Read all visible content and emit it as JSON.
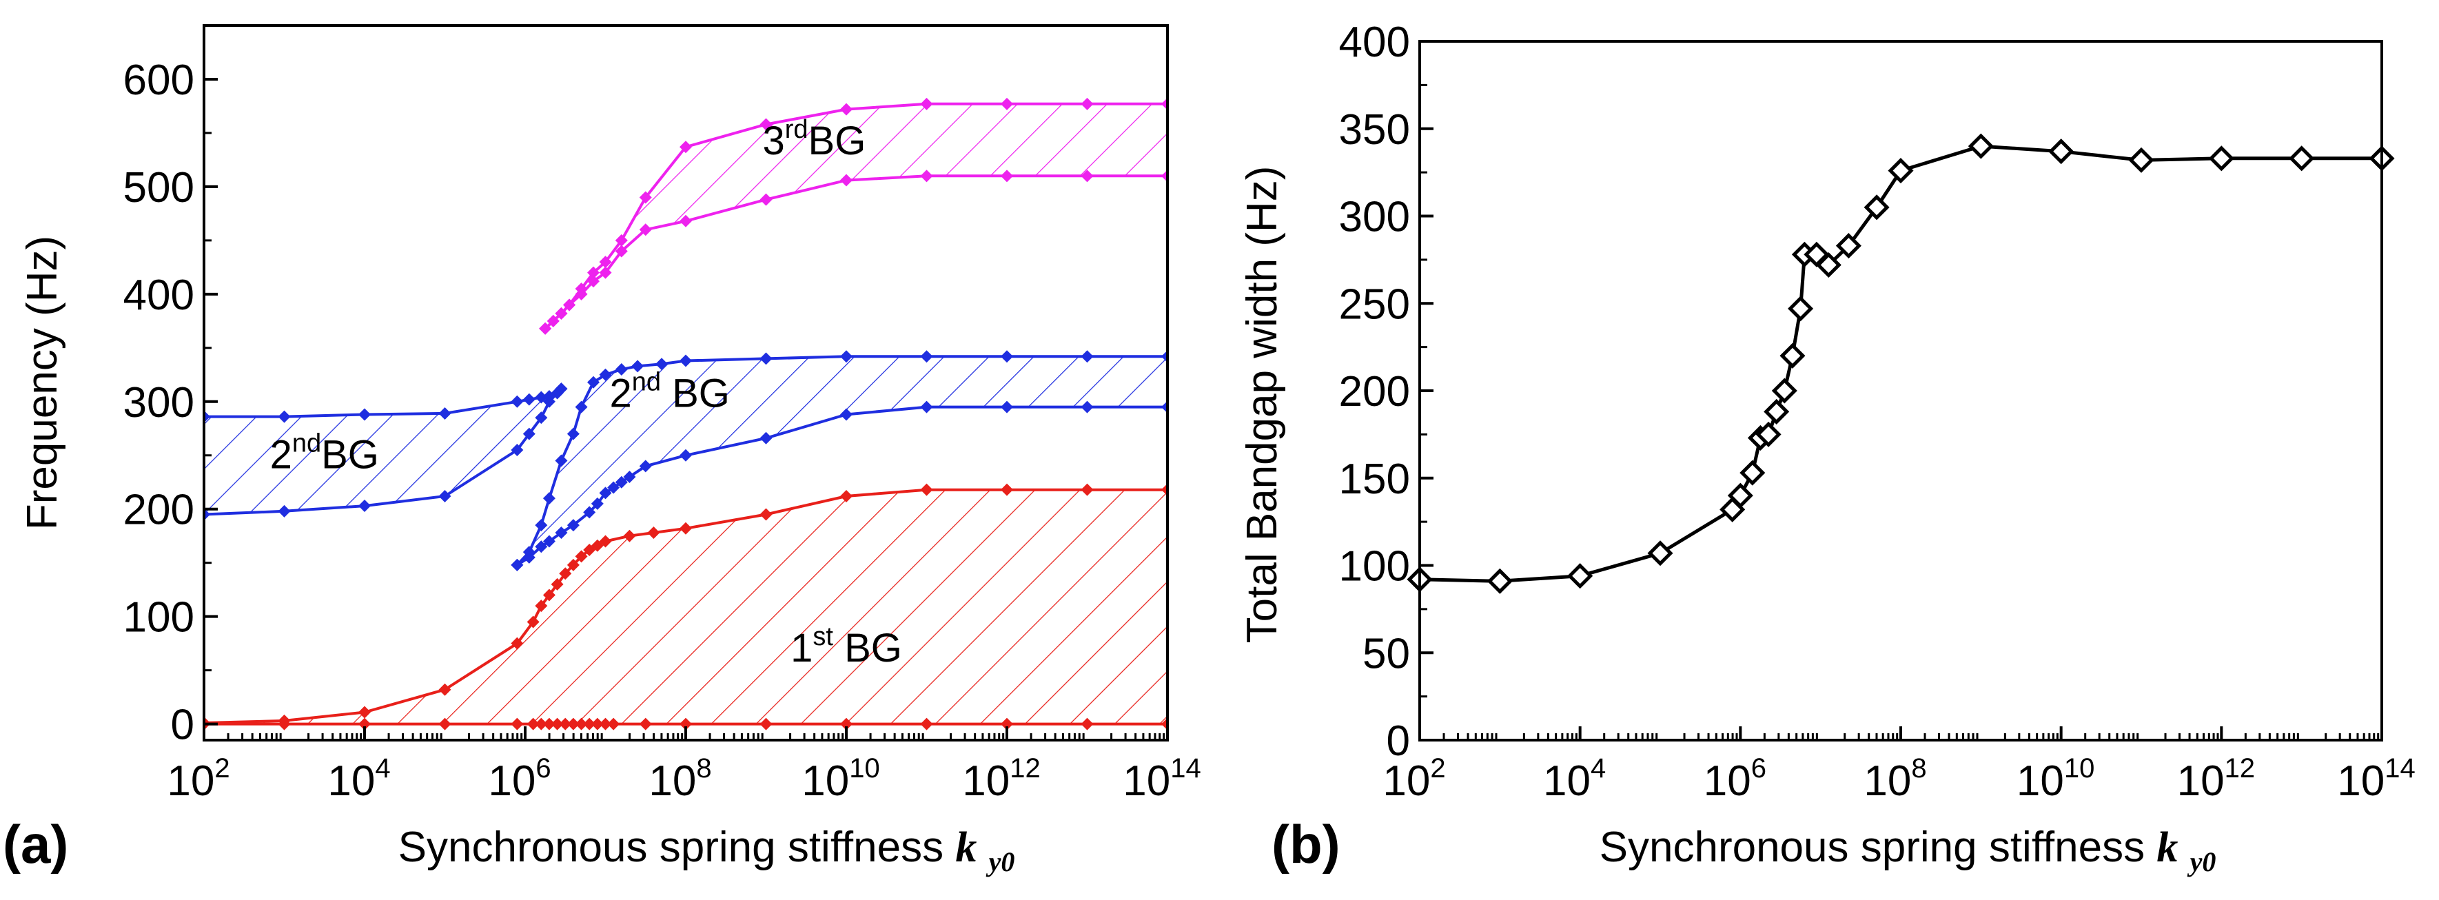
{
  "figure": {
    "panel_a_label": "(a)",
    "panel_b_label": "(b)"
  },
  "colors": {
    "red": "#e8201a",
    "blue": "#1f2ee0",
    "magenta": "#ee22ee",
    "black": "#000000"
  },
  "chart_data": [
    {
      "id": "a",
      "type": "line",
      "xscale": "log10",
      "xlim": [
        2,
        14
      ],
      "ylim": [
        -15,
        650
      ],
      "xlabel": "Synchronous spring stiffness",
      "xlabel_symbol": "k",
      "xlabel_sub": "y0",
      "ylabel": "Frequency (Hz)",
      "xticks": [
        {
          "base": "10",
          "exp": "2",
          "pos": 2
        },
        {
          "base": "10",
          "exp": "4",
          "pos": 4
        },
        {
          "base": "10",
          "exp": "6",
          "pos": 6
        },
        {
          "base": "10",
          "exp": "8",
          "pos": 8
        },
        {
          "base": "10",
          "exp": "10",
          "pos": 10
        },
        {
          "base": "10",
          "exp": "12",
          "pos": 12
        },
        {
          "base": "10",
          "exp": "14",
          "pos": 14
        }
      ],
      "yticks": [
        0,
        100,
        200,
        300,
        400,
        500,
        600
      ],
      "yticks_text": [
        "0",
        "100",
        "200",
        "300",
        "400",
        "500",
        "600"
      ],
      "bands": [
        {
          "name": "1st BG",
          "color": "red",
          "lower": [
            [
              2,
              0
            ],
            [
              3,
              0
            ],
            [
              4,
              0
            ],
            [
              5,
              0
            ],
            [
              5.9,
              0
            ],
            [
              6.1,
              0
            ],
            [
              6.2,
              0
            ],
            [
              6.3,
              0
            ],
            [
              6.4,
              0
            ],
            [
              6.5,
              0
            ],
            [
              6.6,
              0
            ],
            [
              6.7,
              0
            ],
            [
              6.8,
              0
            ],
            [
              6.9,
              0
            ],
            [
              7,
              0
            ],
            [
              7.1,
              0
            ],
            [
              7.5,
              0
            ],
            [
              8,
              0
            ],
            [
              9,
              0
            ],
            [
              10,
              0
            ],
            [
              11,
              0
            ],
            [
              12,
              0
            ],
            [
              13,
              0
            ],
            [
              14,
              0
            ]
          ],
          "upper": [
            [
              2,
              1
            ],
            [
              3,
              3
            ],
            [
              4,
              11
            ],
            [
              5,
              32
            ],
            [
              5.9,
              75
            ],
            [
              6.1,
              95
            ],
            [
              6.2,
              110
            ],
            [
              6.3,
              120
            ],
            [
              6.4,
              130
            ],
            [
              6.5,
              140
            ],
            [
              6.6,
              148
            ],
            [
              6.7,
              156
            ],
            [
              6.8,
              162
            ],
            [
              6.9,
              166
            ],
            [
              7,
              170
            ],
            [
              7.3,
              175
            ],
            [
              7.6,
              178
            ],
            [
              8,
              182
            ],
            [
              9,
              195
            ],
            [
              10,
              212
            ],
            [
              11,
              218
            ],
            [
              12,
              218
            ],
            [
              13,
              218
            ],
            [
              14,
              218
            ]
          ]
        },
        {
          "name": "2nd BG (left)",
          "color": "blue",
          "lower": [
            [
              2,
              195
            ],
            [
              3,
              198
            ],
            [
              4,
              203
            ],
            [
              5,
              212
            ],
            [
              5.9,
              255
            ],
            [
              6.05,
              270
            ],
            [
              6.2,
              285
            ],
            [
              6.3,
              300
            ],
            [
              6.4,
              308
            ],
            [
              6.45,
              312
            ]
          ],
          "upper": [
            [
              2,
              286
            ],
            [
              3,
              286
            ],
            [
              4,
              288
            ],
            [
              5,
              289
            ],
            [
              5.9,
              300
            ],
            [
              6.05,
              302
            ],
            [
              6.2,
              304
            ],
            [
              6.3,
              305
            ],
            [
              6.4,
              308
            ],
            [
              6.45,
              312
            ]
          ]
        },
        {
          "name": "2nd BG (right)",
          "color": "blue",
          "lower": [
            [
              5.9,
              148
            ],
            [
              6.05,
              155
            ],
            [
              6.2,
              165
            ],
            [
              6.3,
              170
            ],
            [
              6.45,
              178
            ],
            [
              6.6,
              185
            ],
            [
              6.8,
              197
            ],
            [
              6.9,
              205
            ],
            [
              7,
              215
            ],
            [
              7.1,
              220
            ],
            [
              7.2,
              225
            ],
            [
              7.3,
              230
            ],
            [
              7.5,
              240
            ],
            [
              8,
              250
            ],
            [
              9,
              266
            ],
            [
              10,
              288
            ],
            [
              11,
              295
            ],
            [
              12,
              295
            ],
            [
              13,
              295
            ],
            [
              14,
              295
            ]
          ],
          "upper": [
            [
              5.9,
              148
            ],
            [
              6.05,
              160
            ],
            [
              6.2,
              185
            ],
            [
              6.3,
              210
            ],
            [
              6.45,
              245
            ],
            [
              6.6,
              270
            ],
            [
              6.7,
              295
            ],
            [
              6.85,
              318
            ],
            [
              7,
              325
            ],
            [
              7.2,
              330
            ],
            [
              7.4,
              333
            ],
            [
              7.7,
              335
            ],
            [
              8,
              338
            ],
            [
              9,
              340
            ],
            [
              10,
              342
            ],
            [
              11,
              342
            ],
            [
              12,
              342
            ],
            [
              13,
              342
            ],
            [
              14,
              342
            ]
          ]
        },
        {
          "name": "3rd BG",
          "color": "magenta",
          "lower": [
            [
              6.25,
              368
            ],
            [
              6.35,
              375
            ],
            [
              6.45,
              382
            ],
            [
              6.55,
              390
            ],
            [
              6.7,
              400
            ],
            [
              6.85,
              412
            ],
            [
              7,
              420
            ],
            [
              7.2,
              440
            ],
            [
              7.5,
              460
            ],
            [
              8,
              468
            ],
            [
              9,
              488
            ],
            [
              10,
              506
            ],
            [
              11,
              510
            ],
            [
              12,
              510
            ],
            [
              13,
              510
            ],
            [
              14,
              510
            ]
          ],
          "upper": [
            [
              6.25,
              368
            ],
            [
              6.35,
              375
            ],
            [
              6.45,
              382
            ],
            [
              6.55,
              390
            ],
            [
              6.7,
              405
            ],
            [
              6.85,
              420
            ],
            [
              7,
              430
            ],
            [
              7.2,
              450
            ],
            [
              7.5,
              490
            ],
            [
              8,
              537
            ],
            [
              9,
              558
            ],
            [
              10,
              572
            ],
            [
              11,
              577
            ],
            [
              12,
              577
            ],
            [
              13,
              577
            ],
            [
              14,
              577
            ]
          ]
        }
      ],
      "annotations": [
        {
          "base": "3",
          "sup": "rd",
          "tail": "BG",
          "x": 9.6,
          "y": 530
        },
        {
          "base": "2",
          "sup": "nd",
          "tail": " BG",
          "x": 7.8,
          "y": 295
        },
        {
          "base": "2",
          "sup": "nd",
          "tail": "BG",
          "x": 3.5,
          "y": 238
        },
        {
          "base": "1",
          "sup": "st",
          "tail": " BG",
          "x": 10.0,
          "y": 58
        }
      ]
    },
    {
      "id": "b",
      "type": "line",
      "xscale": "log10",
      "xlim": [
        2,
        14
      ],
      "ylim": [
        0,
        400
      ],
      "xlabel": "Synchronous spring stiffness",
      "xlabel_symbol": "k",
      "xlabel_sub": "y0",
      "ylabel": "Total Bandgap width (Hz)",
      "xticks": [
        {
          "base": "10",
          "exp": "2",
          "pos": 2
        },
        {
          "base": "10",
          "exp": "4",
          "pos": 4
        },
        {
          "base": "10",
          "exp": "6",
          "pos": 6
        },
        {
          "base": "10",
          "exp": "8",
          "pos": 8
        },
        {
          "base": "10",
          "exp": "10",
          "pos": 10
        },
        {
          "base": "10",
          "exp": "12",
          "pos": 12
        },
        {
          "base": "10",
          "exp": "14",
          "pos": 14
        }
      ],
      "yticks": [
        0,
        50,
        100,
        150,
        200,
        250,
        300,
        350,
        400
      ],
      "yticks_text": [
        "0",
        "50",
        "100",
        "150",
        "200",
        "250",
        "300",
        "350",
        "400"
      ],
      "series": [
        {
          "name": "Total Bandgap width",
          "color": "black",
          "marker": "diamond-open",
          "x": [
            2,
            3,
            4,
            5,
            5.9,
            6.0,
            6.15,
            6.25,
            6.35,
            6.45,
            6.55,
            6.65,
            6.75,
            6.8,
            6.95,
            7.1,
            7.35,
            7.7,
            8.0,
            9.0,
            10.0,
            11.0,
            12.0,
            13.0,
            14.0
          ],
          "y": [
            92,
            91,
            94,
            107,
            132,
            140,
            153,
            173,
            175,
            188,
            200,
            220,
            247,
            278,
            278,
            272,
            283,
            305,
            326,
            340,
            337,
            332,
            333,
            333,
            333
          ]
        }
      ]
    }
  ]
}
